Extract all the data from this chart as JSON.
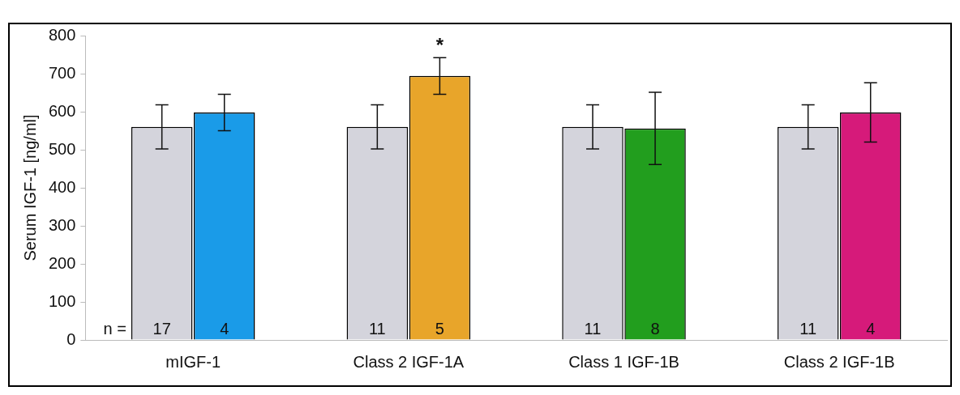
{
  "chart_data": {
    "type": "bar",
    "ylabel": "Serum IGF-1 [ng/ml]",
    "categories": [
      "mIGF-1",
      "Class 2 IGF-1A",
      "Class 1 IGF-1B",
      "Class 2 IGF-1B"
    ],
    "series": [
      {
        "color": "#d4d4dc",
        "values": [
          560,
          560,
          560,
          560
        ],
        "errors": [
          58,
          58,
          58,
          58
        ]
      },
      {
        "colors": [
          "#1a9be8",
          "#e8a52a",
          "#229e1e",
          "#d61a7a"
        ],
        "values": [
          598,
          694,
          556,
          598
        ],
        "errors": [
          48,
          48,
          95,
          78
        ]
      }
    ],
    "ylim": [
      0,
      800
    ],
    "yticks": [
      0,
      100,
      200,
      300,
      400,
      500,
      600,
      700,
      800
    ],
    "grid": false,
    "legend": false,
    "annotations": [
      "n =",
      "17",
      "4",
      "11",
      "5",
      "11",
      "8",
      "11",
      "4",
      "*"
    ]
  }
}
